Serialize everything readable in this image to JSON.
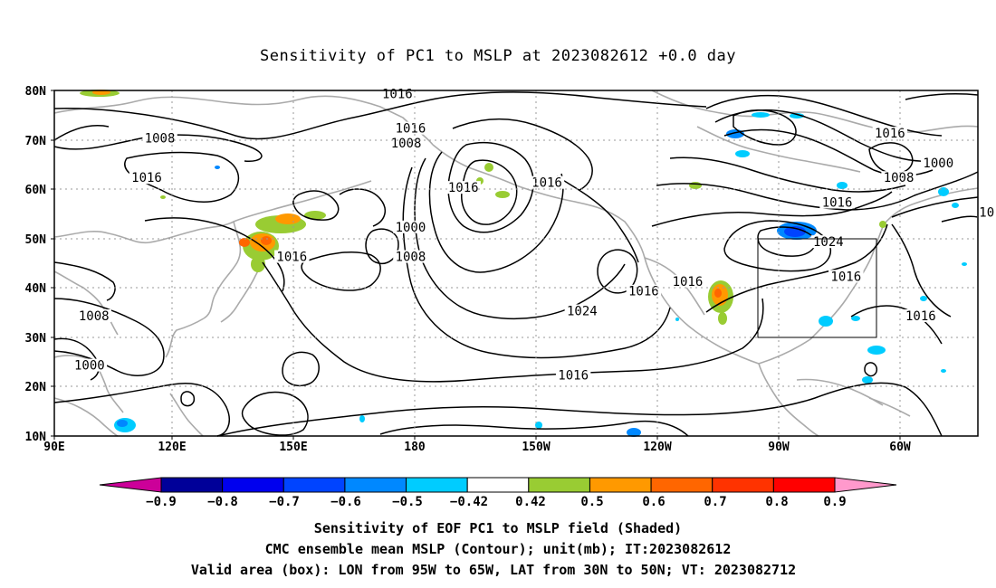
{
  "title": "Sensitivity of PC1 to MSLP at 2023082612 +0.0 day",
  "x_ticks": [
    "90E",
    "120E",
    "150E",
    "180",
    "150W",
    "120W",
    "90W",
    "60W"
  ],
  "y_ticks": [
    "80N",
    "70N",
    "60N",
    "50N",
    "40N",
    "30N",
    "20N",
    "10N"
  ],
  "contour_labels": [
    {
      "text": "1016",
      "lon": 168,
      "lat": 79
    },
    {
      "text": "1016",
      "lon": 171,
      "lat": 72
    },
    {
      "text": "1008",
      "lon": 170,
      "lat": 69
    },
    {
      "text": "1008",
      "lon": 114,
      "lat": 70
    },
    {
      "text": "1016",
      "lon": 111,
      "lat": 62
    },
    {
      "text": "1016",
      "lon": -177,
      "lat": 60
    },
    {
      "text": "1016",
      "lon": -158,
      "lat": 61
    },
    {
      "text": "1000",
      "lon": 171,
      "lat": 52
    },
    {
      "text": "1008",
      "lon": 171,
      "lat": 46
    },
    {
      "text": "1016",
      "lon": 144,
      "lat": 46
    },
    {
      "text": "1024",
      "lon": -150,
      "lat": 35
    },
    {
      "text": "1016",
      "lon": -136,
      "lat": 39
    },
    {
      "text": "1016",
      "lon": -126,
      "lat": 41
    },
    {
      "text": "1008",
      "lon": 99,
      "lat": 34
    },
    {
      "text": "1000",
      "lon": 98,
      "lat": 24
    },
    {
      "text": "1016",
      "lon": -152,
      "lat": 22
    },
    {
      "text": "1016",
      "lon": -80,
      "lat": 71
    },
    {
      "text": "1000",
      "lon": -69,
      "lat": 65
    },
    {
      "text": "1008",
      "lon": -78,
      "lat": 62
    },
    {
      "text": "1016",
      "lon": -92,
      "lat": 57
    },
    {
      "text": "1024",
      "lon": -94,
      "lat": 49
    },
    {
      "text": "1016",
      "lon": -90,
      "lat": 42
    },
    {
      "text": "1016",
      "lon": -73,
      "lat": 34
    },
    {
      "text": "10",
      "lon": -58,
      "lat": 55
    }
  ],
  "colorbar": {
    "labels": [
      "−0.9",
      "−0.8",
      "−0.7",
      "−0.6",
      "−0.5",
      "−0.42",
      "0.42",
      "0.5",
      "0.6",
      "0.7",
      "0.8",
      "0.9"
    ],
    "colors": [
      "#000099",
      "#0000ee",
      "#0044ff",
      "#0088ff",
      "#00ccff",
      "#ffffff",
      "#99cc33",
      "#ff9900",
      "#ff6600",
      "#ff3300",
      "#ff0000"
    ],
    "low_end": "#cc0099",
    "high_end": "#ff99cc"
  },
  "footer": {
    "line1": "Sensitivity of EOF PC1 to MSLP field (Shaded)",
    "line2": "CMC ensemble mean MSLP (Contour); unit(mb); IT:2023082612",
    "line3": "Valid area (box): LON from 95W to 65W, LAT from 30N to 50N; VT: 2023082712"
  }
}
